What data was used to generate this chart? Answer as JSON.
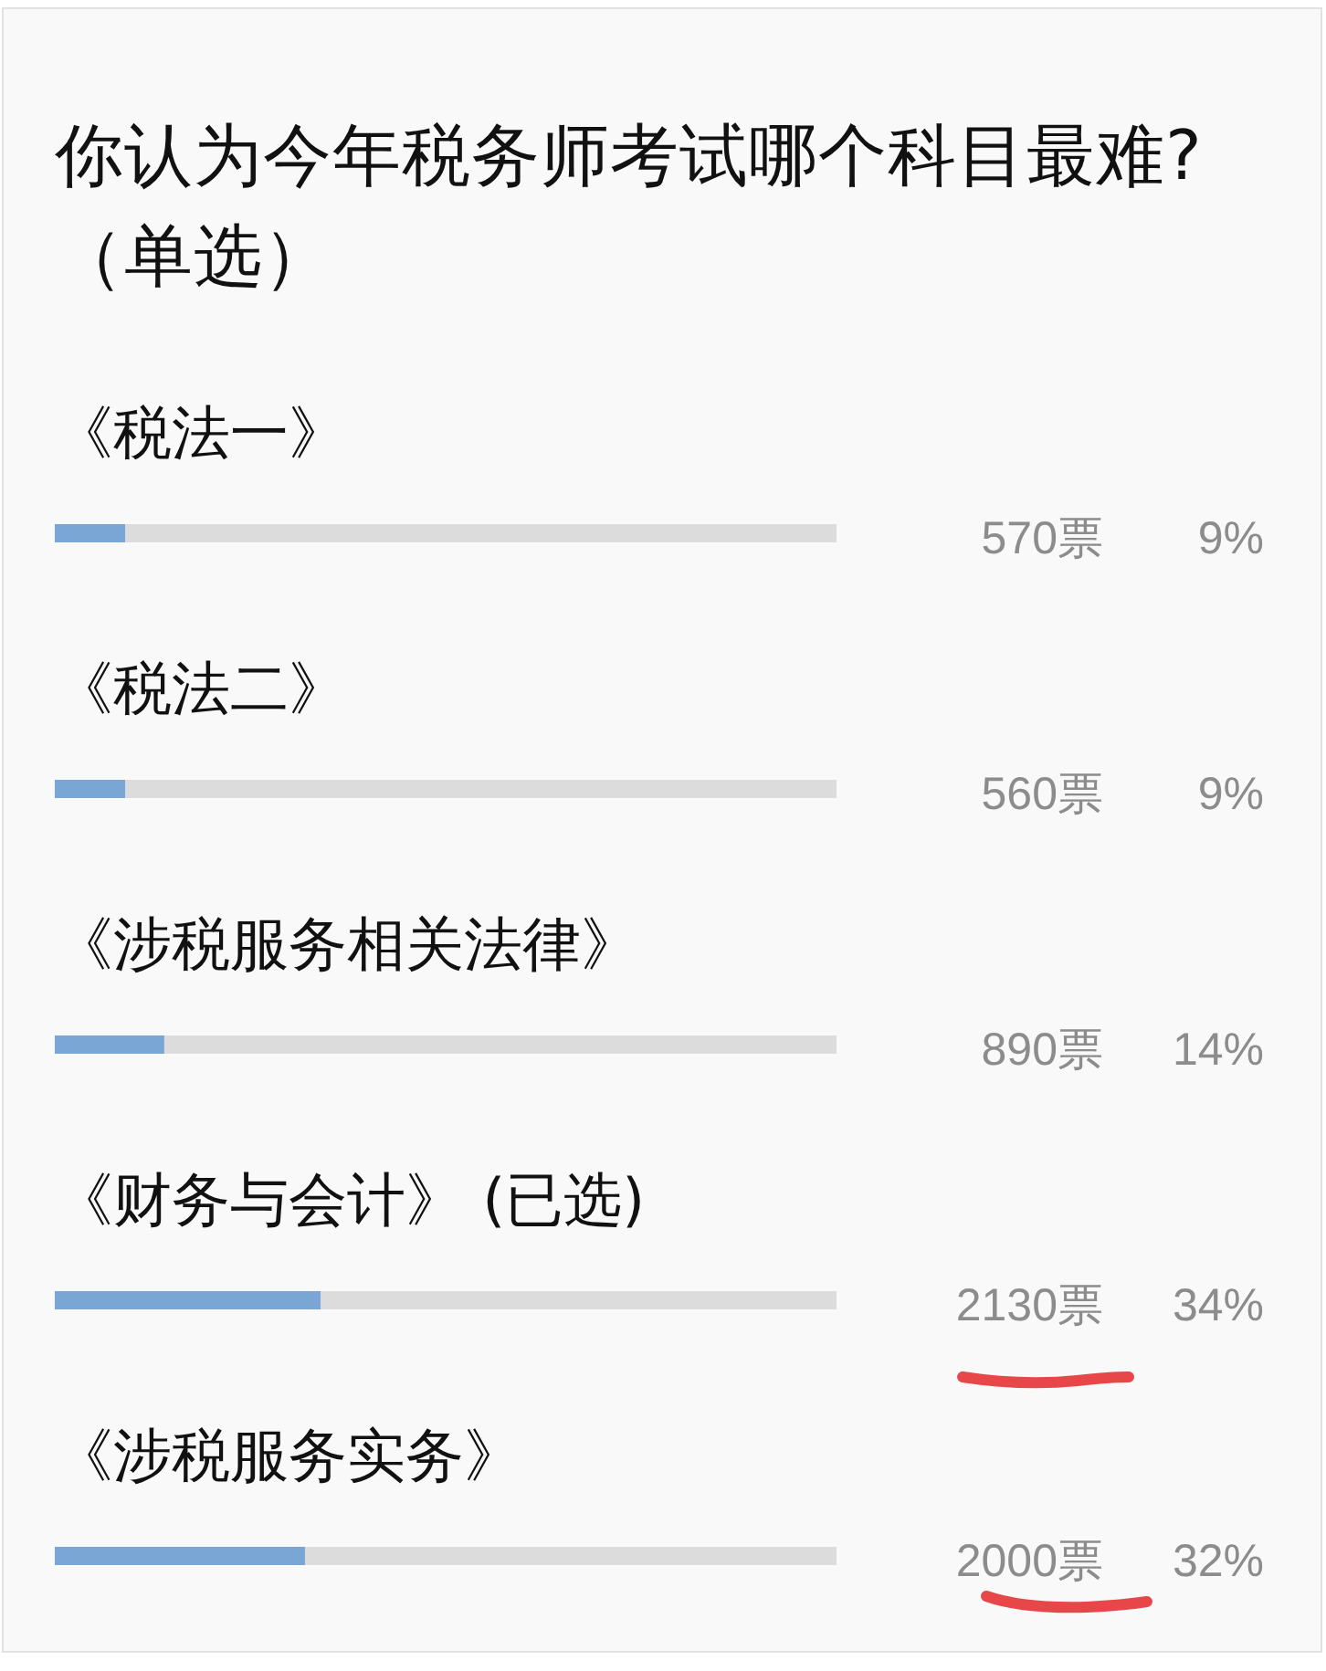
{
  "chart_data": {
    "type": "bar",
    "orientation": "horizontal",
    "title": "你认为今年税务师考试哪个科目最难?",
    "subtitle": "（单选）",
    "categories": [
      "《税法一》",
      "《税法二》",
      "《涉税服务相关法律》",
      "《财务与会计》 (已选)",
      "《涉税服务实务》"
    ],
    "values": [
      9,
      9,
      14,
      34,
      32
    ],
    "value_labels": [
      "9%",
      "9%",
      "14%",
      "34%",
      "32%"
    ],
    "color": "#7aa6d6",
    "xlim": [
      0,
      100
    ],
    "tick_labels": "y",
    "annotations": [
      "570票",
      "560票",
      "890票",
      "2130票",
      "2000票"
    ]
  }
}
